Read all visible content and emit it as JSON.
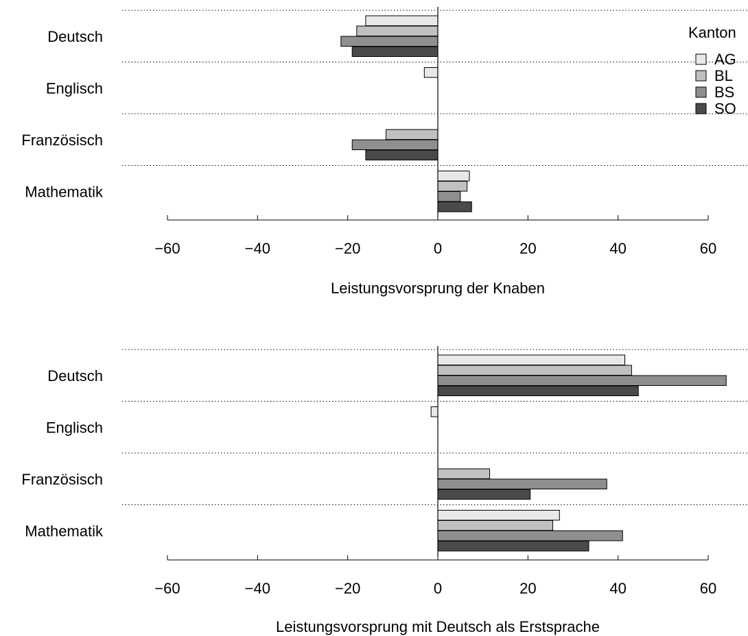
{
  "chart_data": [
    {
      "type": "bar",
      "orientation": "horizontal",
      "categories": [
        "Deutsch",
        "Englisch",
        "Französisch",
        "Mathematik"
      ],
      "xlabel": "Leistungsvorsprung der Knaben",
      "xlim": [
        -60,
        60
      ],
      "xticks": [
        -60,
        -40,
        -20,
        0,
        20,
        40,
        60
      ],
      "grid": "dotted separators between categories",
      "series": [
        {
          "name": "AG",
          "values": [
            -16,
            -3,
            null,
            7
          ]
        },
        {
          "name": "BL",
          "values": [
            -18,
            null,
            -11.5,
            6.5
          ]
        },
        {
          "name": "BS",
          "values": [
            -21.5,
            null,
            -19,
            5
          ]
        },
        {
          "name": "SO",
          "values": [
            -19,
            null,
            -16,
            7.5
          ]
        }
      ]
    },
    {
      "type": "bar",
      "orientation": "horizontal",
      "categories": [
        "Deutsch",
        "Englisch",
        "Französisch",
        "Mathematik"
      ],
      "xlabel": "Leistungsvorsprung mit Deutsch als Erstsprache",
      "xlim": [
        -60,
        60
      ],
      "xticks": [
        -60,
        -40,
        -20,
        0,
        20,
        40,
        60
      ],
      "grid": "dotted separators between categories",
      "series": [
        {
          "name": "AG",
          "values": [
            41.5,
            -1.5,
            null,
            27
          ]
        },
        {
          "name": "BL",
          "values": [
            43,
            null,
            11.5,
            25.5
          ]
        },
        {
          "name": "BS",
          "values": [
            64,
            null,
            37.5,
            41
          ]
        },
        {
          "name": "SO",
          "values": [
            44.5,
            null,
            20.5,
            33.5
          ]
        }
      ]
    }
  ],
  "legend": {
    "title": "Kanton",
    "placement": "top-right",
    "items": [
      "AG",
      "BL",
      "BS",
      "SO"
    ]
  },
  "colors": {
    "AG": "#e8e8e8",
    "BL": "#c0c0c0",
    "BS": "#8f8f8f",
    "SO": "#4a4a4a",
    "stroke": "#000000"
  }
}
